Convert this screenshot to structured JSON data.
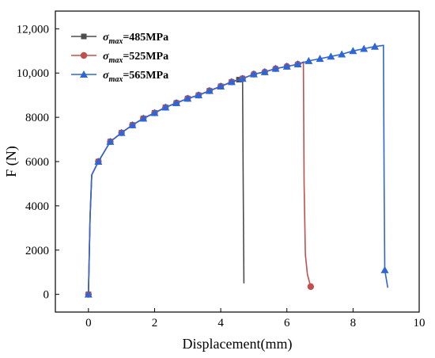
{
  "chart_data": {
    "type": "line",
    "xlabel": "Displacement(mm)",
    "ylabel": "F (N)",
    "xlim": [
      -1,
      10
    ],
    "ylim": [
      -800,
      12800
    ],
    "xticks": [
      0,
      2,
      4,
      6,
      8,
      10
    ],
    "yticks": [
      0,
      2000,
      4000,
      6000,
      8000,
      10000,
      12000
    ],
    "ytick_labels": [
      "0",
      "2000",
      "4000",
      "6000",
      "8000",
      "10,000",
      "12,000"
    ],
    "grid": false,
    "legend_position": "top-left",
    "series": [
      {
        "name_parts": {
          "symbol": "σ",
          "sub": "max",
          "value": "=485MPa"
        },
        "color": "#4d4d4d",
        "marker": "square",
        "x": [
          0,
          0.05,
          0.1,
          0.3,
          0.66,
          1.0,
          1.33,
          1.66,
          2.0,
          2.33,
          2.66,
          3.0,
          3.33,
          3.66,
          4.0,
          4.33,
          4.55,
          4.66,
          4.68,
          4.7
        ],
        "y": [
          0,
          3500,
          5400,
          6000,
          6900,
          7300,
          7650,
          7950,
          8200,
          8450,
          8650,
          8850,
          9000,
          9200,
          9400,
          9600,
          9700,
          9750,
          5000,
          500
        ]
      },
      {
        "name_parts": {
          "symbol": "σ",
          "sub": "max",
          "value": "=525MPa"
        },
        "color": "#c0504d",
        "marker": "circle",
        "x": [
          0,
          0.05,
          0.1,
          0.3,
          0.66,
          1.0,
          1.33,
          1.66,
          2.0,
          2.33,
          2.66,
          3.0,
          3.33,
          3.66,
          4.0,
          4.33,
          4.66,
          5.0,
          5.33,
          5.66,
          6.0,
          6.33,
          6.5,
          6.52,
          6.56,
          6.62,
          6.72
        ],
        "y": [
          0,
          3500,
          5400,
          6000,
          6900,
          7300,
          7650,
          7950,
          8200,
          8450,
          8650,
          8850,
          9000,
          9200,
          9400,
          9600,
          9750,
          9950,
          10050,
          10200,
          10300,
          10400,
          10500,
          5000,
          1800,
          900,
          350
        ],
        "marker_every_point": [
          0,
          3,
          4,
          5,
          6,
          7,
          8,
          9,
          10,
          11,
          12,
          13,
          14,
          15,
          16,
          17,
          18,
          19,
          20,
          21,
          26
        ]
      },
      {
        "name_parts": {
          "symbol": "σ",
          "sub": "max",
          "value": "=565MPa"
        },
        "color": "#2f66d6",
        "marker": "triangle",
        "x": [
          0,
          0.05,
          0.1,
          0.3,
          0.66,
          1.0,
          1.33,
          1.66,
          2.0,
          2.33,
          2.66,
          3.0,
          3.33,
          3.66,
          4.0,
          4.33,
          4.66,
          5.0,
          5.33,
          5.66,
          6.0,
          6.33,
          6.66,
          7.0,
          7.33,
          7.66,
          8.0,
          8.33,
          8.66,
          8.92,
          8.94,
          8.96,
          9.05
        ],
        "y": [
          0,
          3500,
          5400,
          6000,
          6900,
          7300,
          7650,
          7950,
          8200,
          8450,
          8650,
          8850,
          9000,
          9200,
          9400,
          9600,
          9750,
          9950,
          10050,
          10200,
          10300,
          10400,
          10550,
          10650,
          10750,
          10850,
          11000,
          11100,
          11200,
          11250,
          5000,
          1100,
          300
        ],
        "marker_indices": [
          0,
          3,
          4,
          5,
          6,
          7,
          8,
          9,
          10,
          11,
          12,
          13,
          14,
          15,
          16,
          17,
          18,
          19,
          20,
          21,
          22,
          23,
          24,
          25,
          26,
          27,
          28,
          31
        ]
      }
    ]
  }
}
